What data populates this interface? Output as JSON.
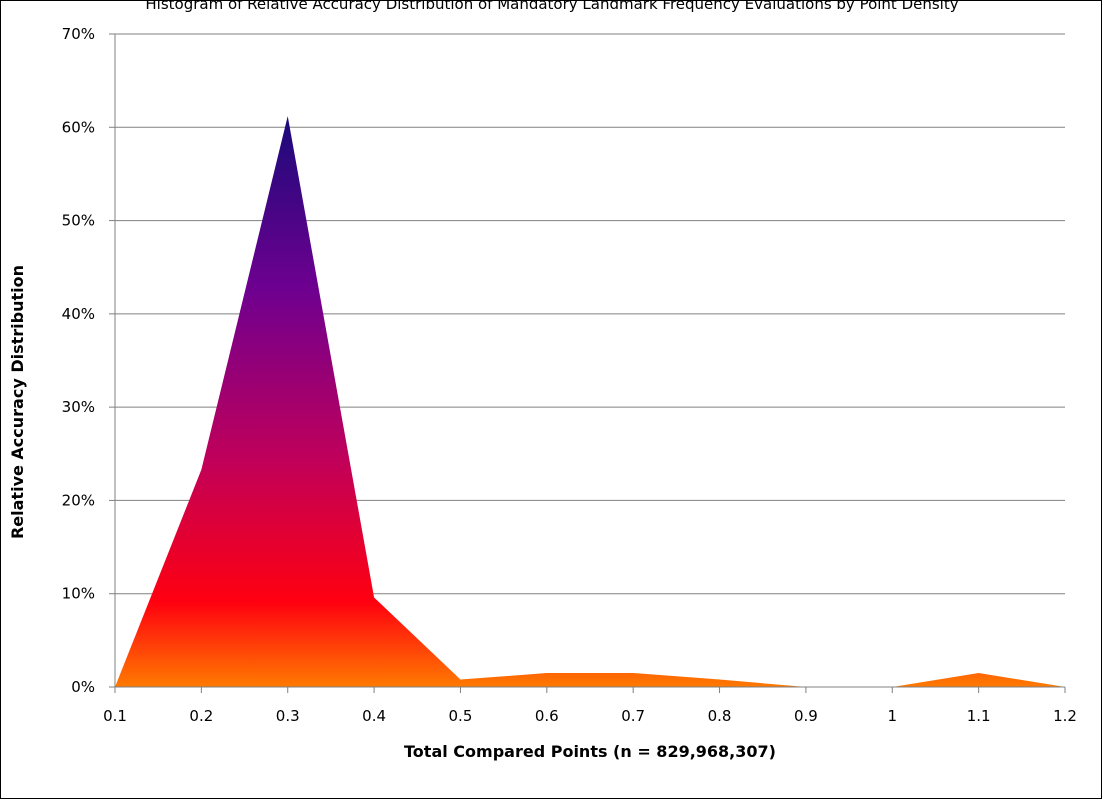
{
  "chart_data": {
    "type": "area",
    "title": "",
    "top_caption": "Histogram of Relative Accuracy Distribution of Mandatory Landmark Frequency Evaluations by Point Density",
    "xlabel": "Total Compared Points (n = 829,968,307)",
    "ylabel": "Relative Accuracy Distribution",
    "x": [
      0.1,
      0.2,
      0.3,
      0.4,
      0.5,
      0.6,
      0.7,
      0.8,
      0.9,
      1,
      1.1,
      1.2
    ],
    "x_tick_labels": [
      "0.1",
      "0.2",
      "0.3",
      "0.4",
      "0.5",
      "0.6",
      "0.7",
      "0.8",
      "0.9",
      "1",
      "1.1",
      "1.2"
    ],
    "y_tick_labels": [
      "0%",
      "10%",
      "20%",
      "30%",
      "40%",
      "50%",
      "60%",
      "70%"
    ],
    "y_ticks": [
      0,
      10,
      20,
      30,
      40,
      50,
      60,
      70
    ],
    "series": [
      {
        "values": [
          0,
          23.3,
          61.2,
          9.6,
          0.8,
          1.5,
          1.5,
          0.8,
          0,
          0,
          1.5,
          0
        ]
      }
    ],
    "xlim": [
      0.1,
      1.2
    ],
    "ylim": [
      0,
      70
    ],
    "grid": "horizontal",
    "legend": "none",
    "colors": {
      "fill_top": "#1b0a7a",
      "fill_upper_mid": "#6e0090",
      "fill_mid": "#c0005a",
      "fill_lower": "#ff0010",
      "fill_bottom": "#ff7a00",
      "grid": "#808080",
      "axis": "#808080"
    }
  }
}
